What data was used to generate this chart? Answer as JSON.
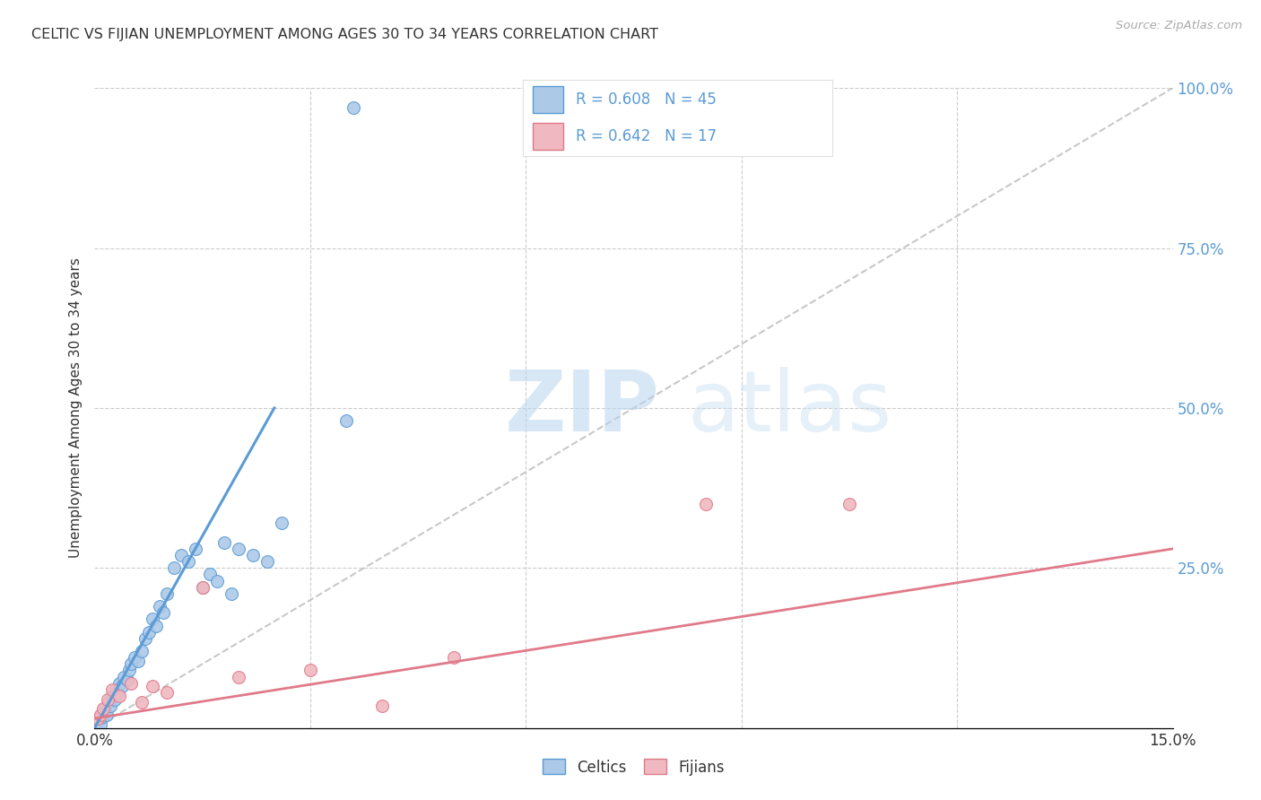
{
  "title": "CELTIC VS FIJIAN UNEMPLOYMENT AMONG AGES 30 TO 34 YEARS CORRELATION CHART",
  "source": "Source: ZipAtlas.com",
  "ylabel": "Unemployment Among Ages 30 to 34 years",
  "xlim": [
    0.0,
    15.0
  ],
  "ylim": [
    0.0,
    100.0
  ],
  "y_ticks": [
    0.0,
    25.0,
    50.0,
    75.0,
    100.0
  ],
  "y_tick_labels_right": [
    "",
    "25.0%",
    "50.0%",
    "75.0%",
    "100.0%"
  ],
  "x_tick_labels": [
    "0.0%",
    "15.0%"
  ],
  "celtic_color": "#5b9bd5",
  "celtic_color_fill": "#adc9e8",
  "fijian_color": "#e07a8a",
  "fijian_color_fill": "#f0b8c0",
  "legend_label_celtic": "R = 0.608   N = 45",
  "legend_label_fijian": "R = 0.642   N = 17",
  "bottom_legend_celtic": "Celtics",
  "bottom_legend_fijian": "Fijians",
  "celtic_x": [
    0.05,
    0.07,
    0.08,
    0.1,
    0.12,
    0.13,
    0.15,
    0.17,
    0.2,
    0.22,
    0.25,
    0.28,
    0.3,
    0.32,
    0.35,
    0.38,
    0.4,
    0.45,
    0.48,
    0.5,
    0.55,
    0.6,
    0.65,
    0.7,
    0.75,
    0.8,
    0.85,
    0.9,
    0.95,
    1.0,
    1.1,
    1.2,
    1.3,
    1.4,
    1.5,
    1.6,
    1.7,
    1.8,
    1.9,
    2.0,
    2.2,
    2.4,
    2.6,
    3.5,
    3.6
  ],
  "celtic_y": [
    1.0,
    1.5,
    0.5,
    2.0,
    1.8,
    2.5,
    3.0,
    2.0,
    4.0,
    3.5,
    5.0,
    4.5,
    6.0,
    5.5,
    7.0,
    6.5,
    8.0,
    7.5,
    9.0,
    10.0,
    11.0,
    10.5,
    12.0,
    14.0,
    15.0,
    17.0,
    16.0,
    19.0,
    18.0,
    21.0,
    25.0,
    27.0,
    26.0,
    28.0,
    22.0,
    24.0,
    23.0,
    29.0,
    21.0,
    28.0,
    27.0,
    26.0,
    32.0,
    48.0,
    97.0
  ],
  "fijian_x": [
    0.05,
    0.08,
    0.12,
    0.18,
    0.25,
    0.35,
    0.5,
    0.65,
    0.8,
    1.0,
    1.5,
    2.0,
    3.0,
    4.0,
    5.0,
    8.5,
    10.5
  ],
  "fijian_y": [
    1.5,
    2.0,
    3.0,
    4.5,
    6.0,
    5.0,
    7.0,
    4.0,
    6.5,
    5.5,
    22.0,
    8.0,
    9.0,
    3.5,
    11.0,
    35.0,
    35.0
  ],
  "celtic_line_x": [
    0.0,
    2.5
  ],
  "celtic_line_y": [
    0.0,
    50.0
  ],
  "fijian_line_x": [
    0.0,
    15.0
  ],
  "fijian_line_y": [
    1.5,
    28.0
  ],
  "ref_line_x": [
    0.0,
    15.0
  ],
  "ref_line_y": [
    0.0,
    100.0
  ],
  "bg_color": "#ffffff",
  "grid_color": "#cccccc",
  "title_color": "#333333",
  "tick_color_right": "#5b9bd5"
}
